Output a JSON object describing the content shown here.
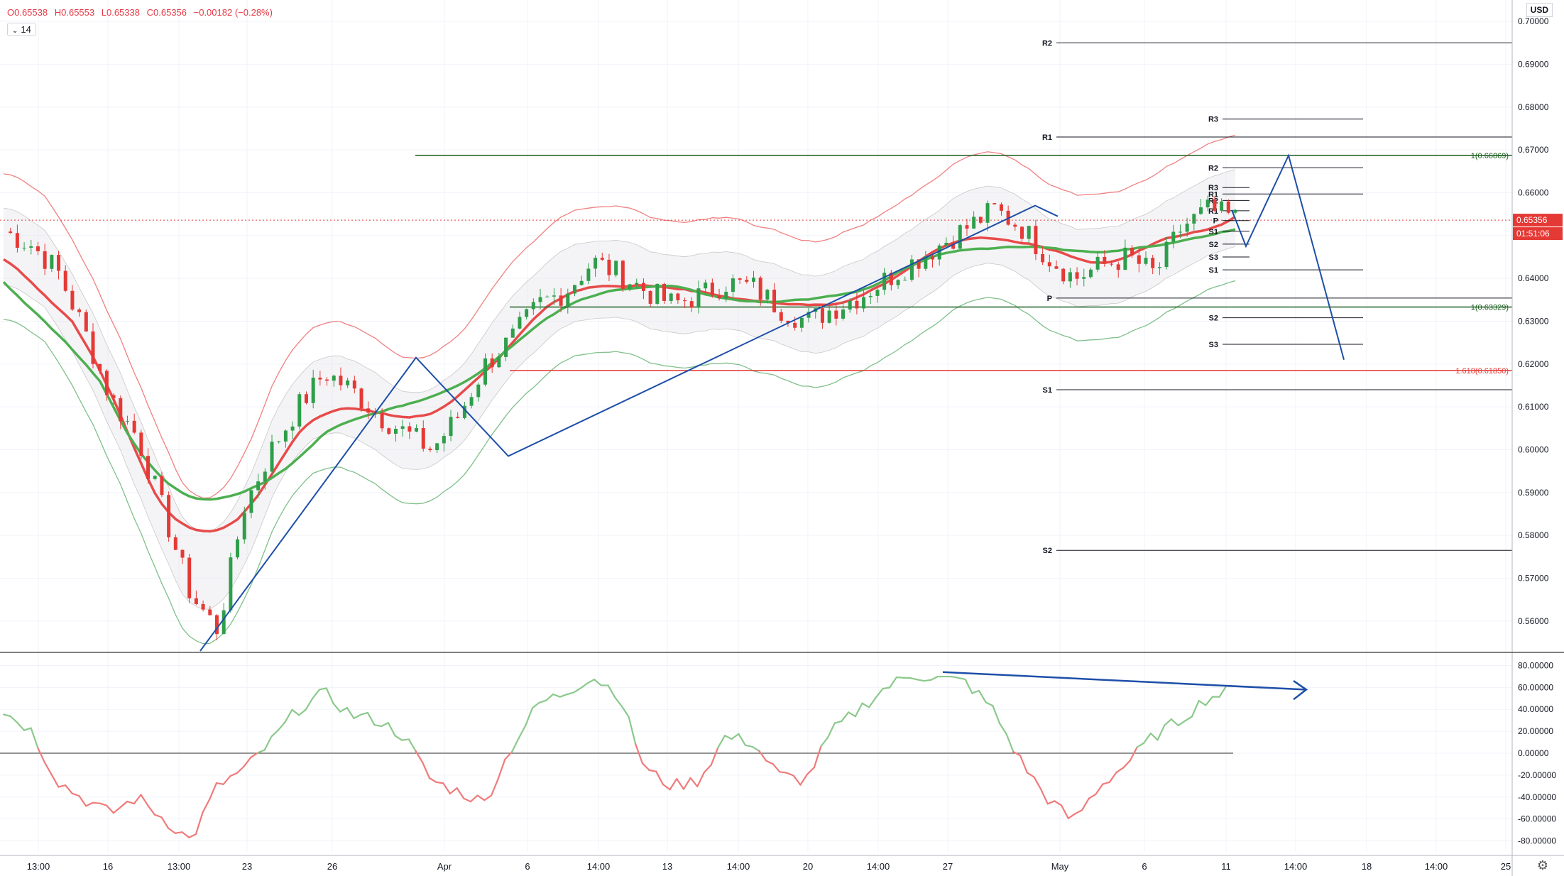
{
  "legend": {
    "open": "O0.65538",
    "high": "H0.65553",
    "low": "L0.65338",
    "close": "C0.65356",
    "change": "−0.00182 (−0.28%)",
    "interval": "14"
  },
  "currency": "USD",
  "price_axis": {
    "ticks": [
      "0.70000",
      "0.69000",
      "0.68000",
      "0.67000",
      "0.66000",
      "0.65000",
      "0.64000",
      "0.63000",
      "0.62000",
      "0.61000",
      "0.60000",
      "0.59000",
      "0.58000",
      "0.57000",
      "0.56000"
    ],
    "last_price": "0.65356",
    "countdown": "01:51:06"
  },
  "osc_axis": {
    "ticks": [
      "80.00000",
      "60.00000",
      "40.00000",
      "20.00000",
      "0.00000",
      "-20.00000",
      "-40.00000",
      "-60.00000",
      "-80.00000"
    ]
  },
  "time_axis": {
    "labels": [
      "13:00",
      "16",
      "13:00",
      "23",
      "26",
      "Apr",
      "6",
      "14:00",
      "13",
      "14:00",
      "20",
      "14:00",
      "27",
      "May",
      "6",
      "11",
      "14:00",
      "18",
      "14:00",
      "25"
    ]
  },
  "fib_labels": [
    "1(0.66869)",
    "1(0.63329)",
    "1.618(0.61850)"
  ],
  "pivot_labels": [
    "R2",
    "R1",
    "S1",
    "S2",
    "R3",
    "R2",
    "R1",
    "P",
    "S2",
    "S3",
    "S1",
    "R3",
    "R2",
    "R1",
    "S1",
    "S2",
    "S3",
    "P"
  ],
  "colors": {
    "bull": "#26a69a",
    "bear": "#ef5350",
    "ema_red": "#e84a4a",
    "ema_green": "#4caf50",
    "pattern": "#1e4fa8",
    "fib_green": "#1b5e20",
    "fib_red": "#e53935"
  },
  "chart_data": {
    "type": "line",
    "title": "",
    "price_range": [
      0.553,
      0.705
    ],
    "oscillator_range": [
      -90,
      90
    ],
    "series": [
      {
        "name": "",
        "values": [
          0.651,
          0.648,
          0.642,
          0.628,
          0.612,
          0.603,
          0.585,
          0.566,
          0.558,
          0.587,
          0.6,
          0.61,
          0.618,
          0.614,
          0.608,
          0.604,
          0.6,
          0.608,
          0.62,
          0.626,
          0.634,
          0.637,
          0.644,
          0.641,
          0.637,
          0.634,
          0.636,
          0.639,
          0.638,
          0.633,
          0.63,
          0.633,
          0.636,
          0.64,
          0.644,
          0.648,
          0.652,
          0.656,
          0.652,
          0.645,
          0.64,
          0.643,
          0.645,
          0.641,
          0.652,
          0.656,
          0.654
        ]
      },
      {
        "name": "",
        "values": [
          38,
          22,
          -25,
          -42,
          -55,
          -40,
          -60,
          -80,
          -30,
          -15,
          10,
          40,
          55,
          35,
          30,
          15,
          -25,
          -35,
          -45,
          5,
          45,
          55,
          70,
          55,
          -15,
          -30,
          -25,
          15,
          10,
          -20,
          -25,
          20,
          40,
          60,
          72,
          68,
          65,
          40,
          -5,
          -40,
          -62,
          -30,
          -10,
          15,
          30,
          50,
          58
        ]
      }
    ]
  }
}
